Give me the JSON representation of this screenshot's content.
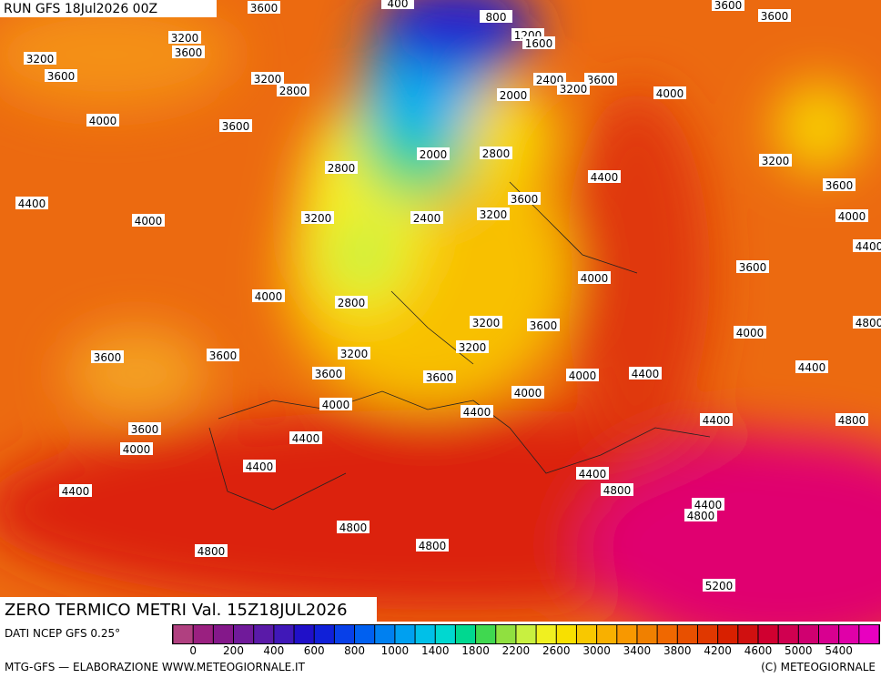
{
  "header": {
    "run": "RUN GFS 18Jul2026 00Z"
  },
  "footer": {
    "title": "ZERO TERMICO METRI Val. 15Z18JUL2026",
    "source": "DATI NCEP GFS 0.25°",
    "credit": "MTG-GFS — ELABORAZIONE WWW.METEOGIORNALE.IT",
    "copyright": "(C) METEOGIORNALE"
  },
  "legend": {
    "colors": [
      "#b04080",
      "#9a2080",
      "#84188a",
      "#701a9a",
      "#5a1aa8",
      "#4018b8",
      "#2010c8",
      "#1020d8",
      "#0840e8",
      "#0060f0",
      "#0080f0",
      "#00a0f0",
      "#00c0e8",
      "#00d8d0",
      "#00d890",
      "#40d850",
      "#90e040",
      "#c8f040",
      "#f0f020",
      "#f8e000",
      "#f8c800",
      "#f8b000",
      "#f89800",
      "#f08000",
      "#f06800",
      "#e85000",
      "#e03800",
      "#d82000",
      "#d01010",
      "#d00030",
      "#d00050",
      "#d00070",
      "#d80090",
      "#e000a8",
      "#e800c0"
    ],
    "labels": [
      0,
      200,
      400,
      600,
      800,
      1000,
      1400,
      1800,
      2200,
      2600,
      3000,
      3400,
      3800,
      4200,
      4600,
      5000,
      5400
    ]
  },
  "map": {
    "labels": [
      "3600",
      "400",
      "800",
      "1200",
      "1600",
      "3600",
      "3600",
      "3200",
      "3600",
      "3200",
      "3600",
      "3200",
      "2800",
      "2400",
      "3600",
      "3200",
      "2000",
      "4000",
      "4000",
      "3600",
      "2000",
      "2800",
      "2800",
      "3200",
      "4400",
      "3600",
      "4400",
      "3600",
      "4000",
      "3200",
      "2400",
      "3200",
      "4000",
      "4400",
      "3600",
      "4000",
      "4000",
      "2800",
      "3200",
      "3600",
      "4800",
      "4000",
      "3200",
      "3200",
      "3600",
      "3600",
      "4400",
      "3600",
      "3600",
      "4000",
      "4400",
      "4000",
      "4000",
      "4400",
      "4400",
      "4800",
      "3600",
      "4000",
      "4400",
      "4400",
      "4400",
      "4400",
      "4800",
      "4400",
      "4800",
      "4800",
      "4800",
      "4800",
      "5200"
    ]
  }
}
